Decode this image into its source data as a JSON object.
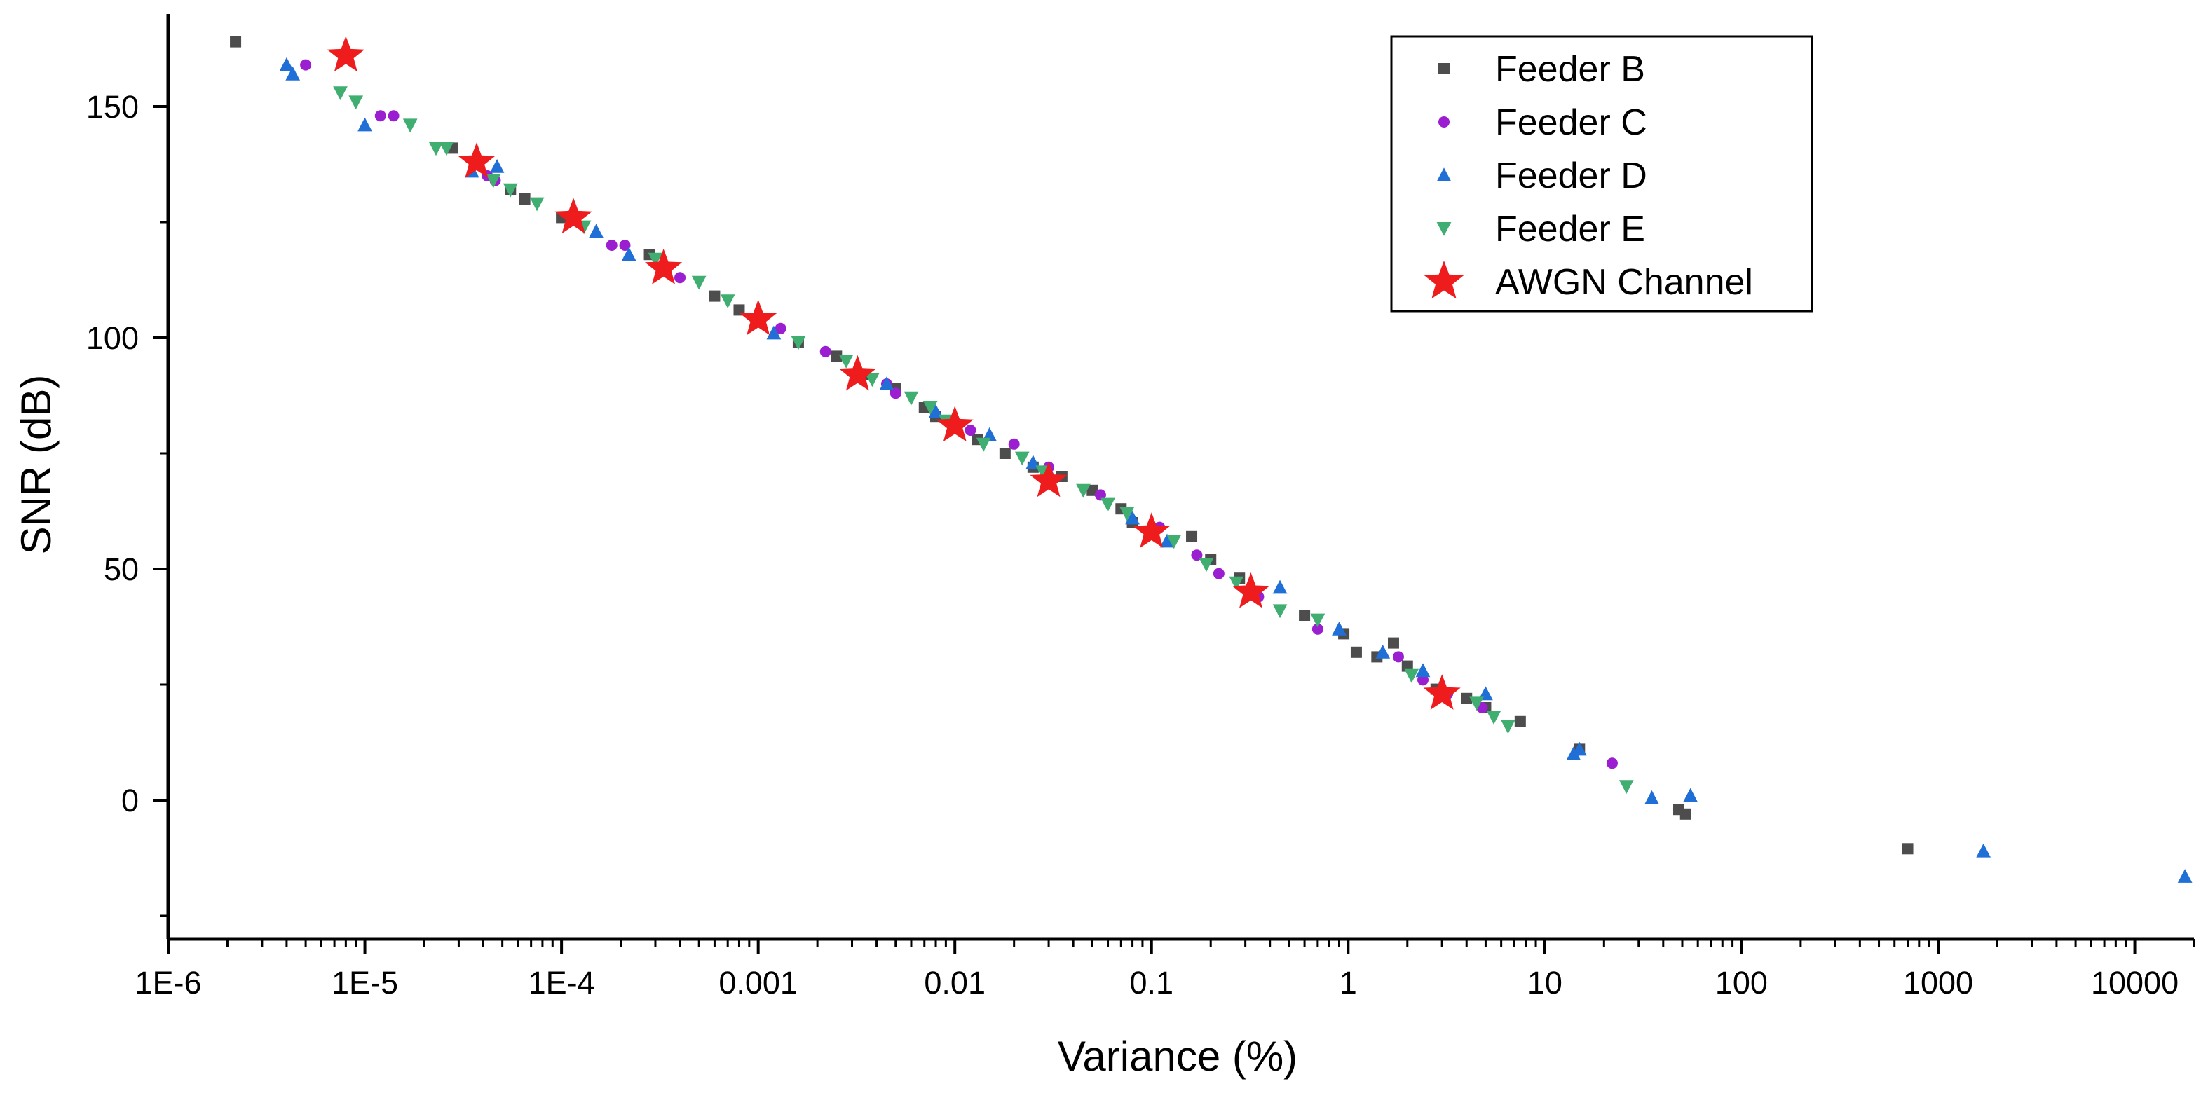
{
  "chart_data": {
    "type": "scatter",
    "title": "",
    "xlabel": "Variance (%)",
    "ylabel": "SNR (dB)",
    "xscale": "log",
    "xlim": [
      1e-06,
      20000
    ],
    "ylim": [
      -30,
      170
    ],
    "x_tick_values": [
      1e-06,
      1e-05,
      0.0001,
      0.001,
      0.01,
      0.1,
      1,
      10,
      100,
      1000,
      10000
    ],
    "x_tick_labels": [
      "1E-6",
      "1E-5",
      "1E-4",
      "0.001",
      "0.01",
      "0.1",
      "1",
      "10",
      "100",
      "1000",
      "10000"
    ],
    "y_tick_values": [
      0,
      50,
      100,
      150
    ],
    "y_tick_labels": [
      "0",
      "50",
      "100",
      "150"
    ],
    "legend_position": "top-right",
    "series": [
      {
        "name": "Feeder B",
        "marker": "square",
        "color": "#4d4d4d",
        "points": [
          [
            2.2e-06,
            164
          ],
          [
            2.8e-05,
            141
          ],
          [
            5.5e-05,
            132
          ],
          [
            6.5e-05,
            130
          ],
          [
            0.0001,
            126
          ],
          [
            0.00028,
            118
          ],
          [
            0.0006,
            109
          ],
          [
            0.0008,
            106
          ],
          [
            0.0016,
            99
          ],
          [
            0.0025,
            96
          ],
          [
            0.0035,
            92
          ],
          [
            0.005,
            89
          ],
          [
            0.007,
            85
          ],
          [
            0.008,
            83
          ],
          [
            0.013,
            78
          ],
          [
            0.018,
            75
          ],
          [
            0.025,
            72
          ],
          [
            0.035,
            70
          ],
          [
            0.05,
            67
          ],
          [
            0.07,
            63
          ],
          [
            0.08,
            60
          ],
          [
            0.16,
            57
          ],
          [
            0.2,
            52
          ],
          [
            0.28,
            48
          ],
          [
            0.6,
            40
          ],
          [
            0.95,
            36
          ],
          [
            1.1,
            32
          ],
          [
            1.4,
            31
          ],
          [
            1.7,
            34
          ],
          [
            2.0,
            29
          ],
          [
            2.8,
            24
          ],
          [
            4.0,
            22
          ],
          [
            5.0,
            20
          ],
          [
            7.5,
            17
          ],
          [
            15,
            11
          ],
          [
            48,
            -2
          ],
          [
            52,
            -3
          ],
          [
            700,
            -10.5
          ]
        ]
      },
      {
        "name": "Feeder C",
        "marker": "circle",
        "color": "#9b1fd0",
        "points": [
          [
            5e-06,
            159
          ],
          [
            1.2e-05,
            148
          ],
          [
            1.4e-05,
            148
          ],
          [
            4.2e-05,
            135
          ],
          [
            4.6e-05,
            134
          ],
          [
            0.00018,
            120
          ],
          [
            0.00021,
            120
          ],
          [
            0.0004,
            113
          ],
          [
            0.0013,
            102
          ],
          [
            0.0022,
            97
          ],
          [
            0.0045,
            90
          ],
          [
            0.005,
            88
          ],
          [
            0.012,
            80
          ],
          [
            0.02,
            77
          ],
          [
            0.03,
            72
          ],
          [
            0.055,
            66
          ],
          [
            0.11,
            59
          ],
          [
            0.17,
            53
          ],
          [
            0.22,
            49
          ],
          [
            0.35,
            44
          ],
          [
            0.7,
            37
          ],
          [
            1.8,
            31
          ],
          [
            2.4,
            26
          ],
          [
            3.2,
            23
          ],
          [
            4.8,
            20
          ],
          [
            22,
            8
          ]
        ]
      },
      {
        "name": "Feeder D",
        "marker": "triangle-up",
        "color": "#1f6fd6",
        "points": [
          [
            4e-06,
            159
          ],
          [
            4.3e-06,
            157
          ],
          [
            1e-05,
            146
          ],
          [
            3.5e-05,
            136
          ],
          [
            4.7e-05,
            137
          ],
          [
            0.00015,
            123
          ],
          [
            0.00022,
            118
          ],
          [
            0.0012,
            101
          ],
          [
            0.0045,
            90
          ],
          [
            0.008,
            84
          ],
          [
            0.015,
            79
          ],
          [
            0.025,
            73
          ],
          [
            0.03,
            71
          ],
          [
            0.08,
            61
          ],
          [
            0.12,
            56
          ],
          [
            0.45,
            46
          ],
          [
            0.9,
            37
          ],
          [
            1.5,
            32
          ],
          [
            2.4,
            28
          ],
          [
            3.0,
            24
          ],
          [
            5.0,
            23
          ],
          [
            14,
            10
          ],
          [
            15,
            11
          ],
          [
            35,
            0.5
          ],
          [
            55,
            1
          ],
          [
            1700,
            -11
          ],
          [
            18000,
            -16.5
          ]
        ]
      },
      {
        "name": "Feeder E",
        "marker": "triangle-down",
        "color": "#3fae70",
        "points": [
          [
            7.5e-06,
            153
          ],
          [
            9e-06,
            151
          ],
          [
            1.7e-05,
            146
          ],
          [
            2.3e-05,
            141
          ],
          [
            2.6e-05,
            141
          ],
          [
            4.5e-05,
            134
          ],
          [
            5.5e-05,
            132
          ],
          [
            7.5e-05,
            129
          ],
          [
            0.00013,
            124
          ],
          [
            0.0003,
            117
          ],
          [
            0.0005,
            112
          ],
          [
            0.0007,
            108
          ],
          [
            0.0016,
            99
          ],
          [
            0.0028,
            95
          ],
          [
            0.0038,
            91
          ],
          [
            0.006,
            87
          ],
          [
            0.0075,
            85
          ],
          [
            0.009,
            82
          ],
          [
            0.014,
            77
          ],
          [
            0.022,
            74
          ],
          [
            0.028,
            71
          ],
          [
            0.045,
            67
          ],
          [
            0.06,
            64
          ],
          [
            0.075,
            62
          ],
          [
            0.13,
            56
          ],
          [
            0.19,
            51
          ],
          [
            0.27,
            47
          ],
          [
            0.45,
            41
          ],
          [
            0.7,
            39
          ],
          [
            2.1,
            27
          ],
          [
            4.5,
            21
          ],
          [
            5.5,
            18
          ],
          [
            6.5,
            16
          ],
          [
            26,
            3
          ]
        ]
      },
      {
        "name": "AWGN Channel",
        "marker": "star",
        "color": "#ee1c1c",
        "points": [
          [
            8e-06,
            161
          ],
          [
            3.7e-05,
            138
          ],
          [
            0.000115,
            126
          ],
          [
            0.00033,
            115
          ],
          [
            0.001,
            104
          ],
          [
            0.0032,
            92
          ],
          [
            0.01,
            81
          ],
          [
            0.03,
            69
          ],
          [
            0.1,
            58
          ],
          [
            0.32,
            45
          ],
          [
            3.0,
            23
          ]
        ]
      }
    ]
  }
}
